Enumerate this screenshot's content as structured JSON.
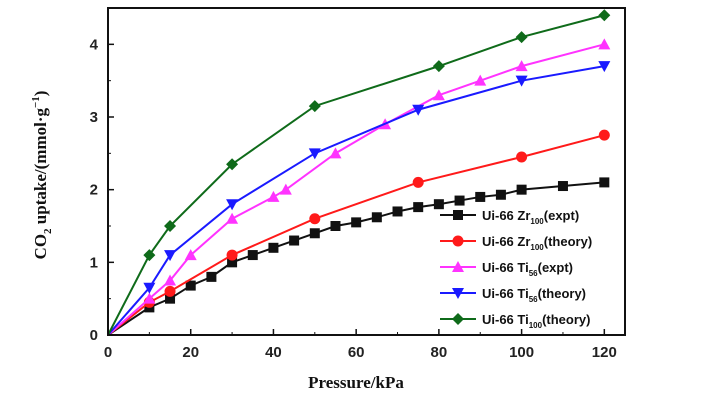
{
  "chart_data": {
    "type": "line",
    "title": "",
    "xlabel": "Pressure/kPa",
    "ylabel_parts": {
      "prefix": "CO",
      "sub": "2",
      "middle": " uptake/(mmol·g",
      "sup": "−1",
      "suffix": ")"
    },
    "xlim": [
      0,
      125
    ],
    "ylim": [
      0,
      4.5
    ],
    "xticks": [
      0,
      20,
      40,
      60,
      80,
      100,
      120
    ],
    "yticks": [
      0,
      1,
      2,
      3,
      4
    ],
    "legend_position": "bottom-right",
    "series": [
      {
        "name": "Ui-66 Zr100(expt)",
        "legend": {
          "base": "Ui-66 Zr",
          "sub": "100",
          "tail": "(expt)"
        },
        "color": "#111111",
        "marker": "square",
        "x": [
          0,
          10,
          15,
          20,
          25,
          30,
          35,
          40,
          45,
          50,
          55,
          60,
          65,
          70,
          75,
          80,
          85,
          90,
          95,
          100,
          110,
          120
        ],
        "y": [
          0,
          0.38,
          0.5,
          0.68,
          0.8,
          1.0,
          1.1,
          1.2,
          1.3,
          1.4,
          1.5,
          1.55,
          1.62,
          1.7,
          1.76,
          1.8,
          1.85,
          1.9,
          1.93,
          2.0,
          2.05,
          2.1
        ]
      },
      {
        "name": "Ui-66 Zr100(theory)",
        "legend": {
          "base": "Ui-66 Zr",
          "sub": "100",
          "tail": "(theory)"
        },
        "color": "#ff1a1a",
        "marker": "circle",
        "x": [
          0,
          10,
          15,
          30,
          50,
          75,
          100,
          120
        ],
        "y": [
          0,
          0.45,
          0.6,
          1.1,
          1.6,
          2.1,
          2.45,
          2.75
        ]
      },
      {
        "name": "Ui-66 Ti56(expt)",
        "legend": {
          "base": "Ui-66 Ti",
          "sub": "56",
          "tail": "(expt)"
        },
        "color": "#ff33ff",
        "marker": "triangle-up",
        "x": [
          0,
          10,
          15,
          20,
          30,
          40,
          43,
          55,
          67,
          80,
          90,
          100,
          120
        ],
        "y": [
          0,
          0.5,
          0.75,
          1.1,
          1.6,
          1.9,
          2.0,
          2.5,
          2.9,
          3.3,
          3.5,
          3.7,
          4.0
        ]
      },
      {
        "name": "Ui-66 Ti56(theory)",
        "legend": {
          "base": "Ui-66 Ti",
          "sub": "56",
          "tail": "(theory)"
        },
        "color": "#1a1aff",
        "marker": "triangle-down",
        "x": [
          0,
          10,
          15,
          30,
          50,
          75,
          100,
          120
        ],
        "y": [
          0,
          0.65,
          1.1,
          1.8,
          2.5,
          3.1,
          3.5,
          3.7
        ]
      },
      {
        "name": "Ui-66 Ti100(theory)",
        "legend": {
          "base": "Ui-66 Ti",
          "sub": "100",
          "tail": "(theory)"
        },
        "color": "#0f6b1a",
        "marker": "diamond",
        "x": [
          0,
          10,
          15,
          30,
          50,
          80,
          100,
          120
        ],
        "y": [
          0,
          1.1,
          1.5,
          2.35,
          3.15,
          3.7,
          4.1,
          4.4
        ]
      }
    ]
  }
}
